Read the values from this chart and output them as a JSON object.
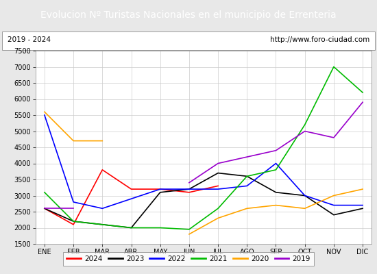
{
  "title": "Evolucion Nº Turistas Nacionales en el municipio de Errenteria",
  "subtitle_left": "2019 - 2024",
  "subtitle_right": "http://www.foro-ciudad.com",
  "months": [
    "ENE",
    "FEB",
    "MAR",
    "ABR",
    "MAY",
    "JUN",
    "JUL",
    "AGO",
    "SEP",
    "OCT",
    "NOV",
    "DIC"
  ],
  "ylim": [
    1500,
    7500
  ],
  "yticks": [
    1500,
    2000,
    2500,
    3000,
    3500,
    4000,
    4500,
    5000,
    5500,
    6000,
    6500,
    7000,
    7500
  ],
  "series": {
    "2024": {
      "color": "#ff0000",
      "data": [
        2600,
        2100,
        3800,
        3200,
        3200,
        3100,
        3300,
        null,
        null,
        null,
        null,
        null
      ]
    },
    "2023": {
      "color": "#000000",
      "data": [
        2600,
        2200,
        2100,
        2000,
        3100,
        3200,
        3700,
        3600,
        3100,
        3000,
        2400,
        2600
      ]
    },
    "2022": {
      "color": "#0000ff",
      "data": [
        5500,
        2800,
        2600,
        2900,
        3200,
        3200,
        3200,
        3300,
        4000,
        3000,
        2700,
        2700
      ]
    },
    "2021": {
      "color": "#00bb00",
      "data": [
        3100,
        2200,
        2100,
        2000,
        2000,
        1950,
        2600,
        3600,
        3800,
        5200,
        7000,
        6200
      ]
    },
    "2020": {
      "color": "#ffa500",
      "data": [
        5600,
        4700,
        4700,
        null,
        null,
        1800,
        2300,
        2600,
        2700,
        2600,
        3000,
        3200
      ]
    },
    "2019": {
      "color": "#9900cc",
      "data": [
        2600,
        2600,
        null,
        null,
        null,
        3400,
        4000,
        4200,
        4400,
        5000,
        4800,
        5900
      ]
    }
  },
  "title_bg": "#4472c4",
  "title_color": "#ffffff",
  "title_fontsize": 10,
  "subtitle_fontsize": 7.5,
  "tick_fontsize": 7,
  "legend_fontsize": 7.5,
  "legend_order": [
    "2024",
    "2023",
    "2022",
    "2021",
    "2020",
    "2019"
  ],
  "background_color": "#e8e8e8",
  "plot_bg": "#ffffff",
  "line_width": 1.2
}
